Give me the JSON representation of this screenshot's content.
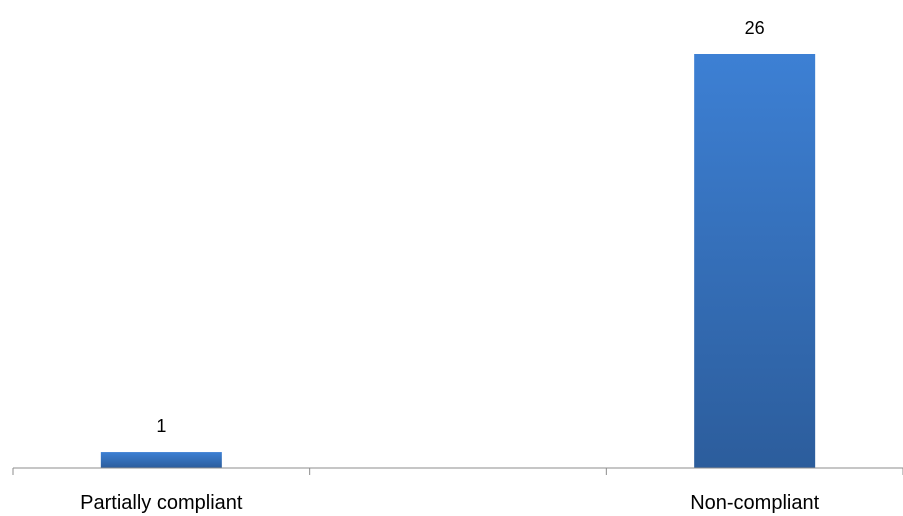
{
  "chart_data": {
    "type": "bar",
    "categories": [
      "Partially compliant",
      "Non-compliant"
    ],
    "values": [
      1,
      26
    ],
    "data_labels": [
      "1",
      "26"
    ],
    "ylim": [
      0,
      26
    ],
    "grid": false,
    "legend": "none",
    "colors": {
      "bar_top": "#3d80d4",
      "bar_bottom": "#2c5d9c",
      "axis": "#8c8c8c",
      "text": "#000000"
    }
  }
}
